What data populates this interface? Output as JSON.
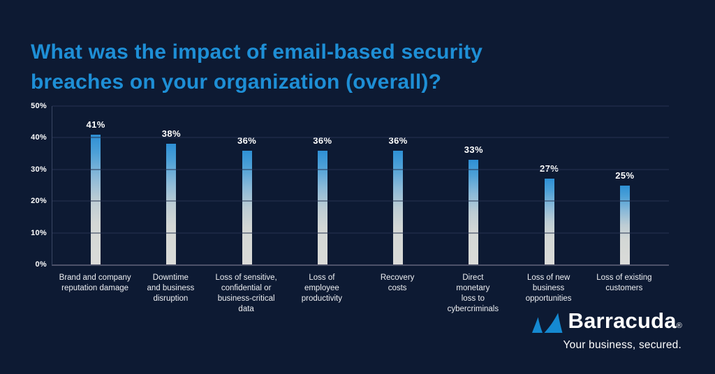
{
  "title": "What was the impact of email-based security\nbreaches on your organization (overall)?",
  "chart_data": {
    "type": "bar",
    "title": "What was the impact of email-based security breaches on your organization (overall)?",
    "categories": [
      "Brand and company\nreputation damage",
      "Downtime\nand business\ndisruption",
      "Loss of sensitive,\nconfidential or\nbusiness-critical\ndata",
      "Loss of\nemployee\nproductivity",
      "Recovery\ncosts",
      "Direct\nmonetary\nloss to\ncybercriminals",
      "Loss of new business\nopportunities",
      "Loss of existing\ncustomers"
    ],
    "values": [
      41,
      38,
      36,
      36,
      36,
      33,
      27,
      25
    ],
    "value_labels": [
      "41%",
      "38%",
      "36%",
      "36%",
      "36%",
      "33%",
      "27%",
      "25%"
    ],
    "xlabel": "",
    "ylabel": "",
    "ylim": [
      0,
      50
    ],
    "yticks": [
      {
        "label": "0%",
        "value": 0
      },
      {
        "label": "10%",
        "value": 10
      },
      {
        "label": "20%",
        "value": 20
      },
      {
        "label": "30%",
        "value": 30
      },
      {
        "label": "40%",
        "value": 40
      },
      {
        "label": "50%",
        "value": 50
      }
    ],
    "grid": true,
    "legend": false
  },
  "branding": {
    "name": "Barracuda",
    "registered_mark": "®",
    "tagline": "Your business, secured.",
    "logo_icon": "barracuda-fins-icon"
  },
  "colors": {
    "background": "#0d1a33",
    "title_blue": "#1e8fd6",
    "bar_top_blue": "#2e90d5",
    "bar_bottom_gray": "#dadbd8",
    "gridline": "#263350",
    "axis_line": "#4d5269",
    "text_white": "#ffffff",
    "logo_blue": "#1589d1"
  }
}
